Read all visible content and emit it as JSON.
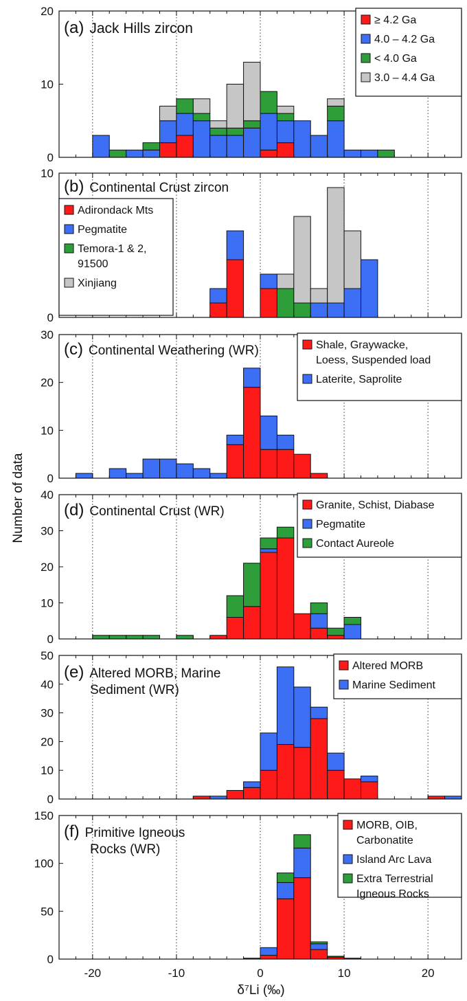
{
  "figure": {
    "ylabel": "Number of data",
    "xlabel": "δ⁷Li (‰)",
    "xlim": [
      -24,
      24
    ],
    "xticks": [
      "-20",
      "-10",
      "0",
      "10",
      "20"
    ],
    "grid_x": [
      -20,
      -10,
      0,
      10,
      20
    ]
  },
  "colors": {
    "red": "#ff1a1a",
    "blue": "#3d6ff5",
    "green": "#2e9e3a",
    "gray": "#c6c6c6"
  },
  "chart_data": [
    {
      "type": "bar",
      "label": "(a)",
      "title": "Jack Hills zircon",
      "ylim": [
        0,
        20
      ],
      "yticks": [
        "0",
        "10",
        "20"
      ],
      "bin_width": 2,
      "x": [
        -20,
        -18,
        -16,
        -14,
        -12,
        -10,
        -8,
        -6,
        -4,
        -2,
        0,
        2,
        4,
        6,
        8,
        10,
        12,
        14
      ],
      "series": [
        {
          "name": "≥ 4.2 Ga",
          "color": "red",
          "values": [
            0,
            0,
            0,
            0,
            2,
            3,
            0,
            0,
            0,
            0,
            1,
            2,
            0,
            0,
            0,
            0,
            0,
            0
          ]
        },
        {
          "name": "4.0 – 4.2 Ga",
          "color": "blue",
          "values": [
            3,
            0,
            1,
            1,
            3,
            3,
            5,
            3,
            3,
            4,
            5,
            3,
            5,
            3,
            5,
            1,
            1,
            0
          ]
        },
        {
          "name": "< 4.0 Ga",
          "color": "green",
          "values": [
            0,
            1,
            0,
            1,
            0,
            2,
            1,
            1,
            1,
            1,
            3,
            1,
            0,
            0,
            2,
            0,
            0,
            1
          ]
        },
        {
          "name": "3.0 – 4.4 Ga",
          "color": "gray",
          "values": [
            0,
            0,
            0,
            0,
            2,
            0,
            2,
            1,
            6,
            8,
            0,
            1,
            0,
            0,
            1,
            0,
            0,
            0
          ]
        }
      ]
    },
    {
      "type": "bar",
      "label": "(b)",
      "title": "Continental Crust zircon",
      "ylim": [
        0,
        10
      ],
      "yticks": [
        "0",
        "10"
      ],
      "bin_width": 2,
      "x": [
        -6,
        -4,
        -2,
        0,
        2,
        4,
        6,
        8,
        10,
        12
      ],
      "series": [
        {
          "name": "Adirondack Mts",
          "color": "red",
          "values": [
            1,
            4,
            0,
            2,
            0,
            0,
            0,
            0,
            0,
            0
          ]
        },
        {
          "name": "Pegmatite",
          "color": "blue",
          "values": [
            1,
            2,
            0,
            1,
            0,
            0,
            1,
            1,
            2,
            4
          ]
        },
        {
          "name": "Temora-1 & 2, 91500",
          "color": "green",
          "values": [
            0,
            0,
            0,
            0,
            2,
            1,
            0,
            0,
            0,
            0
          ]
        },
        {
          "name": "Xinjiang",
          "color": "gray",
          "values": [
            0,
            0,
            0,
            0,
            1,
            6,
            1,
            8,
            4,
            0
          ]
        }
      ]
    },
    {
      "type": "bar",
      "label": "(c)",
      "title": "Continental Weathering (WR)",
      "ylim": [
        0,
        30
      ],
      "yticks": [
        "0",
        "10",
        "20",
        "30"
      ],
      "bin_width": 2,
      "x": [
        -22,
        -20,
        -18,
        -16,
        -14,
        -12,
        -10,
        -8,
        -6,
        -4,
        -2,
        0,
        2,
        4,
        6
      ],
      "series": [
        {
          "name": "Shale, Graywacke, Loess, Suspended load",
          "color": "red",
          "values": [
            0,
            0,
            0,
            0,
            0,
            0,
            0,
            0,
            0,
            7,
            19,
            6,
            6,
            5,
            1
          ]
        },
        {
          "name": "Laterite, Saprolite",
          "color": "blue",
          "values": [
            1,
            0,
            2,
            1,
            4,
            4,
            3,
            2,
            1,
            2,
            4,
            7,
            3,
            0,
            0
          ]
        }
      ]
    },
    {
      "type": "bar",
      "label": "(d)",
      "title": "Continental Crust (WR)",
      "ylim": [
        0,
        40
      ],
      "yticks": [
        "0",
        "10",
        "20",
        "30",
        "40"
      ],
      "bin_width": 2,
      "x": [
        -20,
        -18,
        -16,
        -14,
        -12,
        -10,
        -8,
        -6,
        -4,
        -2,
        0,
        2,
        4,
        6,
        8,
        10
      ],
      "series": [
        {
          "name": "Granite, Schist, Diabase",
          "color": "red",
          "values": [
            0,
            0,
            0,
            0,
            0,
            0,
            0,
            1,
            6,
            9,
            24,
            28,
            7,
            3,
            1,
            0
          ]
        },
        {
          "name": "Pegmatite",
          "color": "blue",
          "values": [
            0,
            0,
            0,
            0,
            0,
            0,
            0,
            0,
            0,
            0,
            1,
            0,
            0,
            4,
            0,
            4
          ]
        },
        {
          "name": "Contact Aureole",
          "color": "green",
          "values": [
            1,
            1,
            1,
            1,
            0,
            1,
            0,
            0,
            6,
            12,
            3,
            3,
            0,
            3,
            2,
            2
          ]
        }
      ]
    },
    {
      "type": "bar",
      "label": "(e)",
      "title": "Altered MORB, Marine Sediment (WR)",
      "ylim": [
        0,
        50
      ],
      "yticks": [
        "0",
        "10",
        "20",
        "30",
        "40",
        "50"
      ],
      "bin_width": 2,
      "x": [
        -8,
        -6,
        -4,
        -2,
        0,
        2,
        4,
        6,
        8,
        10,
        12,
        20,
        22
      ],
      "series": [
        {
          "name": "Altered MORB",
          "color": "red",
          "values": [
            1,
            0,
            3,
            4,
            10,
            19,
            18,
            28,
            10,
            7,
            6,
            1,
            0
          ]
        },
        {
          "name": "Marine Sediment",
          "color": "blue",
          "values": [
            0,
            1,
            0,
            2,
            13,
            27,
            21,
            4,
            6,
            0,
            2,
            0,
            1
          ]
        }
      ]
    },
    {
      "type": "bar",
      "label": "(f)",
      "title": "Primitive Igneous Rocks (WR)",
      "ylim": [
        0,
        150
      ],
      "yticks": [
        "0",
        "50",
        "100",
        "150"
      ],
      "bin_width": 2,
      "x": [
        -2,
        0,
        2,
        4,
        6,
        8,
        10
      ],
      "series": [
        {
          "name": "MORB, OIB, Carbonatite",
          "color": "red",
          "values": [
            1,
            4,
            63,
            85,
            10,
            2,
            1
          ]
        },
        {
          "name": "Island Arc Lava",
          "color": "blue",
          "values": [
            0,
            8,
            17,
            31,
            6,
            0,
            0
          ]
        },
        {
          "name": "Extra Terrestrial Igneous Rocks",
          "color": "green",
          "values": [
            0,
            0,
            10,
            14,
            2,
            1,
            0
          ]
        }
      ]
    }
  ]
}
